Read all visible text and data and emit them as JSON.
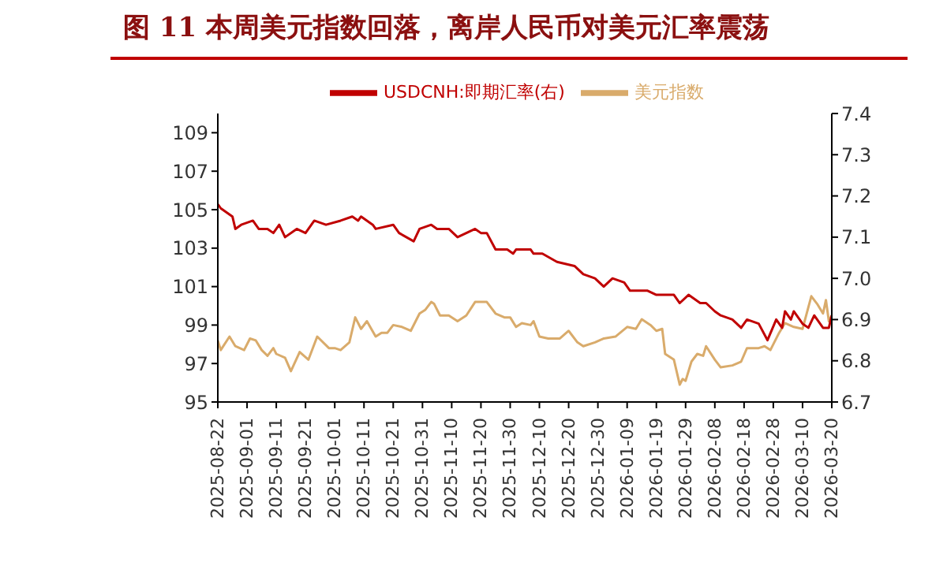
{
  "chart_data": {
    "type": "line",
    "title": "图 11 本周美元指数回落，离岸人民币对美元汇率震荡",
    "xlim": [
      "2025-08-22",
      "2026-03-20"
    ],
    "xticks": [
      "2025-08-22",
      "2025-09-01",
      "2025-09-11",
      "2025-09-21",
      "2025-10-01",
      "2025-10-11",
      "2025-10-21",
      "2025-10-31",
      "2025-11-10",
      "2025-11-20",
      "2025-11-30",
      "2025-12-10",
      "2025-12-20",
      "2025-12-30",
      "2026-01-09",
      "2026-01-19",
      "2026-01-29",
      "2026-02-08",
      "2026-02-18",
      "2026-02-28",
      "2026-03-10",
      "2026-03-20"
    ],
    "ylim": [
      95,
      110
    ],
    "yticks": [
      95,
      97,
      99,
      101,
      103,
      105,
      107,
      109
    ],
    "y2lim": [
      6.7,
      7.4
    ],
    "y2ticks": [
      6.7,
      6.8,
      6.9,
      {
        "value": 7,
        "label": "7.0"
      },
      7.1,
      7.2,
      7.3,
      7.4
    ],
    "legend": "top",
    "grid": false,
    "marker": "none",
    "line_style": "solid",
    "series": [
      {
        "name": "美元指数",
        "color": "#d9ab6b",
        "x": [
          "2025-08-22",
          "2025-08-23",
          "2025-08-26",
          "2025-08-28",
          "2025-08-31",
          "2025-09-02",
          "2025-09-04",
          "2025-09-06",
          "2025-09-08",
          "2025-09-10",
          "2025-09-11",
          "2025-09-14",
          "2025-09-16",
          "2025-09-19",
          "2025-09-22",
          "2025-09-25",
          "2025-09-29",
          "2025-10-01",
          "2025-10-03",
          "2025-10-06",
          "2025-10-08",
          "2025-10-10",
          "2025-10-12",
          "2025-10-15",
          "2025-10-17",
          "2025-10-19",
          "2025-10-21",
          "2025-10-24",
          "2025-10-27",
          "2025-10-30",
          "2025-11-01",
          "2025-11-03",
          "2025-11-04",
          "2025-11-06",
          "2025-11-09",
          "2025-11-12",
          "2025-11-15",
          "2025-11-18",
          "2025-11-22",
          "2025-11-25",
          "2025-11-28",
          "2025-11-30",
          "2025-12-02",
          "2025-12-04",
          "2025-12-07",
          "2025-12-08",
          "2025-12-10",
          "2025-12-13",
          "2025-12-17",
          "2025-12-20",
          "2025-12-23",
          "2025-12-25",
          "2025-12-29",
          "2026-01-01",
          "2026-01-05",
          "2026-01-09",
          "2026-01-12",
          "2026-01-14",
          "2026-01-17",
          "2026-01-19",
          "2026-01-21",
          "2026-01-22",
          "2026-01-25",
          "2026-01-27",
          "2026-01-28",
          "2026-01-29",
          "2026-01-31",
          "2026-02-02",
          "2026-02-04",
          "2026-02-05",
          "2026-02-08",
          "2026-02-10",
          "2026-02-14",
          "2026-02-17",
          "2026-02-19",
          "2026-02-23",
          "2026-02-25",
          "2026-02-27",
          "2026-03-02",
          "2026-03-04",
          "2026-03-07",
          "2026-03-10",
          "2026-03-13",
          "2026-03-15",
          "2026-03-17",
          "2026-03-18",
          "2026-03-19",
          "2026-03-20"
        ],
        "values": [
          98.2,
          97.7,
          98.4,
          97.9,
          97.7,
          98.3,
          98.2,
          97.7,
          97.4,
          97.8,
          97.5,
          97.3,
          96.6,
          97.6,
          97.2,
          98.4,
          97.8,
          97.8,
          97.7,
          98.1,
          99.4,
          98.8,
          99.2,
          98.4,
          98.6,
          98.6,
          99.0,
          98.9,
          98.7,
          99.6,
          99.8,
          100.2,
          100.1,
          99.5,
          99.5,
          99.2,
          99.5,
          100.2,
          100.2,
          99.6,
          99.4,
          99.4,
          98.9,
          99.1,
          99.0,
          99.2,
          98.4,
          98.3,
          98.3,
          98.7,
          98.1,
          97.9,
          98.1,
          98.3,
          98.4,
          98.9,
          98.8,
          99.3,
          99.0,
          98.7,
          98.8,
          97.5,
          97.2,
          95.9,
          96.2,
          96.1,
          97.1,
          97.5,
          97.4,
          97.9,
          97.2,
          96.8,
          96.9,
          97.1,
          97.8,
          97.8,
          97.9,
          97.7,
          98.6,
          99.1,
          98.9,
          98.8,
          100.5,
          100.1,
          99.6,
          100.3,
          99.2,
          99.5
        ]
      },
      {
        "name": "USDCNH:即期汇率(右)",
        "color": "#c00000",
        "axis": "y2",
        "x": [
          "2025-08-22",
          "2025-08-23",
          "2025-08-27",
          "2025-08-28",
          "2025-08-30",
          "2025-09-03",
          "2025-09-05",
          "2025-09-08",
          "2025-09-10",
          "2025-09-12",
          "2025-09-14",
          "2025-09-18",
          "2025-09-21",
          "2025-09-24",
          "2025-09-28",
          "2025-10-03",
          "2025-10-07",
          "2025-10-09",
          "2025-10-10",
          "2025-10-14",
          "2025-10-15",
          "2025-10-21",
          "2025-10-23",
          "2025-10-28",
          "2025-10-30",
          "2025-11-03",
          "2025-11-05",
          "2025-11-09",
          "2025-11-12",
          "2025-11-18",
          "2025-11-20",
          "2025-11-22",
          "2025-11-25",
          "2025-11-29",
          "2025-12-01",
          "2025-12-02",
          "2025-12-07",
          "2025-12-08",
          "2025-12-11",
          "2025-12-16",
          "2025-12-22",
          "2025-12-25",
          "2025-12-29",
          "2026-01-01",
          "2026-01-04",
          "2026-01-08",
          "2026-01-10",
          "2026-01-14",
          "2026-01-16",
          "2026-01-19",
          "2026-01-22",
          "2026-01-25",
          "2026-01-27",
          "2026-01-30",
          "2026-02-03",
          "2026-02-05",
          "2026-02-08",
          "2026-02-10",
          "2026-02-14",
          "2026-02-17",
          "2026-02-19",
          "2026-02-23",
          "2026-02-26",
          "2026-03-01",
          "2026-03-03",
          "2026-03-04",
          "2026-03-06",
          "2026-03-07",
          "2026-03-10",
          "2026-03-12",
          "2026-03-14",
          "2026-03-17",
          "2026-03-19",
          "2026-03-20"
        ],
        "values": [
          7.18,
          7.17,
          7.15,
          7.12,
          7.13,
          7.14,
          7.12,
          7.12,
          7.11,
          7.13,
          7.1,
          7.12,
          7.11,
          7.14,
          7.13,
          7.14,
          7.15,
          7.14,
          7.15,
          7.13,
          7.12,
          7.13,
          7.11,
          7.09,
          7.12,
          7.13,
          7.12,
          7.12,
          7.1,
          7.12,
          7.11,
          7.11,
          7.07,
          7.07,
          7.06,
          7.07,
          7.07,
          7.06,
          7.06,
          7.04,
          7.03,
          7.01,
          7.0,
          6.98,
          7.0,
          6.99,
          6.97,
          6.97,
          6.97,
          6.96,
          6.96,
          6.96,
          6.94,
          6.96,
          6.94,
          6.94,
          6.92,
          6.91,
          6.9,
          6.88,
          6.9,
          6.89,
          6.85,
          6.9,
          6.88,
          6.92,
          6.9,
          6.92,
          6.89,
          6.88,
          6.91,
          6.88,
          6.88,
          6.91
        ]
      }
    ]
  }
}
